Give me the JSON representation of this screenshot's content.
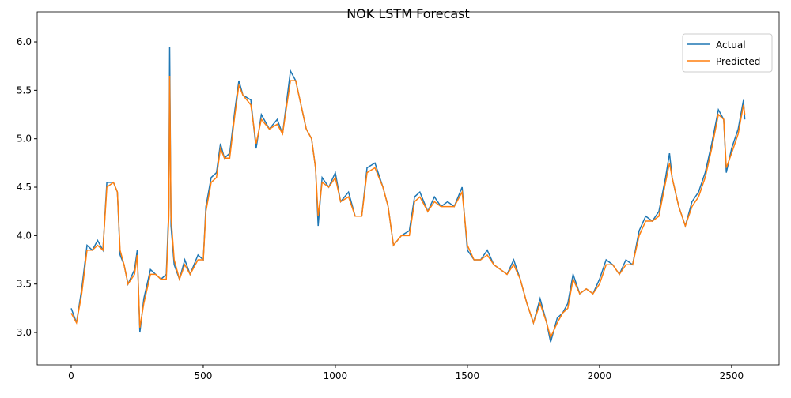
{
  "chart_data": {
    "type": "line",
    "title": "NOK LSTM Forecast",
    "x": [
      0,
      20,
      40,
      60,
      80,
      100,
      120,
      135,
      160,
      175,
      185,
      200,
      215,
      240,
      250,
      260,
      275,
      300,
      320,
      340,
      360,
      370,
      373,
      378,
      390,
      410,
      430,
      450,
      480,
      500,
      510,
      530,
      550,
      565,
      580,
      600,
      620,
      635,
      650,
      680,
      700,
      720,
      750,
      780,
      800,
      830,
      850,
      870,
      890,
      910,
      925,
      935,
      950,
      975,
      1000,
      1020,
      1050,
      1075,
      1100,
      1120,
      1150,
      1180,
      1200,
      1220,
      1250,
      1280,
      1300,
      1320,
      1350,
      1375,
      1400,
      1425,
      1450,
      1480,
      1500,
      1525,
      1550,
      1575,
      1600,
      1625,
      1650,
      1675,
      1700,
      1725,
      1750,
      1775,
      1800,
      1815,
      1840,
      1860,
      1880,
      1900,
      1925,
      1950,
      1975,
      2000,
      2025,
      2050,
      2075,
      2100,
      2125,
      2150,
      2175,
      2200,
      2225,
      2250,
      2265,
      2275,
      2300,
      2325,
      2350,
      2375,
      2400,
      2425,
      2450,
      2470,
      2480,
      2500,
      2525,
      2545,
      2550
    ],
    "series": [
      {
        "name": "Actual",
        "color": "#1f77b4",
        "values": [
          3.25,
          3.1,
          3.45,
          3.9,
          3.85,
          3.95,
          3.85,
          4.55,
          4.55,
          4.45,
          3.8,
          3.7,
          3.5,
          3.65,
          3.85,
          3.0,
          3.35,
          3.65,
          3.6,
          3.55,
          3.6,
          4.3,
          5.95,
          4.1,
          3.7,
          3.55,
          3.75,
          3.6,
          3.8,
          3.75,
          4.3,
          4.6,
          4.65,
          4.95,
          4.8,
          4.85,
          5.3,
          5.6,
          5.45,
          5.4,
          4.9,
          5.25,
          5.1,
          5.2,
          5.05,
          5.7,
          5.6,
          5.35,
          5.1,
          5.0,
          4.7,
          4.1,
          4.6,
          4.5,
          4.65,
          4.35,
          4.45,
          4.2,
          4.2,
          4.7,
          4.75,
          4.5,
          4.3,
          3.9,
          4.0,
          4.05,
          4.4,
          4.45,
          4.25,
          4.4,
          4.3,
          4.35,
          4.3,
          4.5,
          3.85,
          3.75,
          3.75,
          3.85,
          3.7,
          3.65,
          3.6,
          3.75,
          3.55,
          3.3,
          3.1,
          3.35,
          3.1,
          2.9,
          3.15,
          3.2,
          3.3,
          3.6,
          3.4,
          3.45,
          3.4,
          3.55,
          3.75,
          3.7,
          3.6,
          3.75,
          3.7,
          4.05,
          4.2,
          4.15,
          4.25,
          4.6,
          4.85,
          4.6,
          4.3,
          4.1,
          4.35,
          4.45,
          4.65,
          4.95,
          5.3,
          5.2,
          4.65,
          4.9,
          5.1,
          5.4,
          5.2
        ]
      },
      {
        "name": "Predicted",
        "color": "#ff7f0e",
        "values": [
          3.2,
          3.1,
          3.4,
          3.85,
          3.85,
          3.9,
          3.85,
          4.5,
          4.55,
          4.45,
          3.85,
          3.7,
          3.5,
          3.6,
          3.8,
          3.05,
          3.3,
          3.6,
          3.6,
          3.55,
          3.55,
          4.2,
          5.65,
          4.2,
          3.75,
          3.55,
          3.7,
          3.6,
          3.75,
          3.75,
          4.25,
          4.55,
          4.6,
          4.9,
          4.8,
          4.8,
          5.25,
          5.55,
          5.45,
          5.35,
          4.95,
          5.2,
          5.1,
          5.15,
          5.05,
          5.6,
          5.6,
          5.35,
          5.1,
          5.0,
          4.7,
          4.2,
          4.55,
          4.5,
          4.6,
          4.35,
          4.4,
          4.2,
          4.2,
          4.65,
          4.7,
          4.5,
          4.3,
          3.9,
          4.0,
          4.0,
          4.35,
          4.4,
          4.25,
          4.35,
          4.3,
          4.3,
          4.3,
          4.45,
          3.9,
          3.75,
          3.75,
          3.8,
          3.7,
          3.65,
          3.6,
          3.7,
          3.55,
          3.3,
          3.1,
          3.3,
          3.1,
          2.95,
          3.1,
          3.2,
          3.25,
          3.55,
          3.4,
          3.45,
          3.4,
          3.5,
          3.7,
          3.7,
          3.6,
          3.7,
          3.7,
          4.0,
          4.15,
          4.15,
          4.2,
          4.55,
          4.75,
          4.6,
          4.3,
          4.1,
          4.3,
          4.4,
          4.6,
          4.9,
          5.25,
          5.2,
          4.7,
          4.85,
          5.05,
          5.35,
          5.25
        ]
      }
    ],
    "xlim": [
      -128.7,
      2680
    ],
    "ylim": [
      2.666,
      6.31
    ],
    "xticks": [
      0,
      500,
      1000,
      1500,
      2000,
      2500
    ],
    "yticks": [
      {
        "value": 3.0,
        "label": "3.0"
      },
      3.5,
      {
        "value": 4.0,
        "label": "4.0"
      },
      4.5,
      {
        "value": 5.0,
        "label": "5.0"
      },
      5.5,
      {
        "value": 6.0,
        "label": "6.0"
      }
    ],
    "legend": "upper right"
  }
}
